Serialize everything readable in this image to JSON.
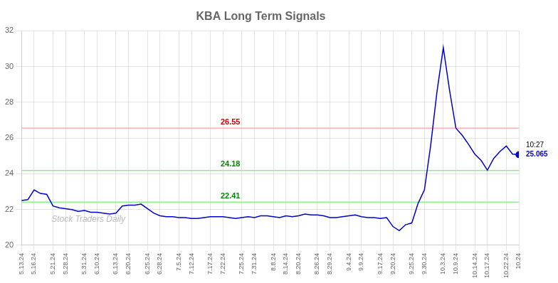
{
  "chart_data": {
    "type": "line",
    "title": "KBA Long Term Signals",
    "categories": [
      "5.13.24",
      null,
      "5.16.24",
      null,
      null,
      "5.21.24",
      null,
      "5.28.24",
      null,
      null,
      "5.31.24",
      null,
      "6.10.24",
      null,
      null,
      "6.13.24",
      null,
      "6.20.24",
      null,
      null,
      "6.25.24",
      null,
      "6.28.24",
      null,
      null,
      "7.5.24",
      null,
      "7.12.24",
      null,
      null,
      "7.17.24",
      null,
      "7.22.24",
      null,
      null,
      "7.25.24",
      null,
      "7.31.24",
      null,
      null,
      "8.8.24",
      null,
      "8.14.24",
      null,
      "8.20.24",
      null,
      null,
      "8.26.24",
      null,
      "8.29.24",
      null,
      null,
      "9.4.24",
      null,
      "9.9.24",
      null,
      null,
      "9.17.24",
      null,
      "9.20.24",
      null,
      null,
      "9.25.24",
      null,
      "9.30.24",
      null,
      null,
      "10.3.24",
      null,
      "10.9.24",
      null,
      null,
      "10.14.24",
      null,
      "10.17.24",
      null,
      null,
      "10.22.24",
      null,
      "10.24"
    ],
    "values": [
      22.5,
      22.55,
      23.1,
      22.9,
      22.85,
      22.2,
      22.1,
      22.05,
      22.0,
      21.9,
      21.95,
      21.85,
      21.85,
      21.8,
      21.75,
      21.8,
      22.2,
      22.25,
      22.25,
      22.3,
      22.05,
      21.8,
      21.65,
      21.6,
      21.6,
      21.55,
      21.55,
      21.5,
      21.5,
      21.55,
      21.6,
      21.6,
      21.6,
      21.55,
      21.5,
      21.55,
      21.6,
      21.55,
      21.65,
      21.65,
      21.6,
      21.55,
      21.65,
      21.6,
      21.65,
      21.75,
      21.7,
      21.7,
      21.65,
      21.55,
      21.55,
      21.6,
      21.65,
      21.7,
      21.6,
      21.55,
      21.55,
      21.5,
      21.55,
      21.05,
      20.82,
      21.15,
      21.25,
      22.35,
      23.1,
      25.6,
      28.6,
      31.05,
      28.65,
      26.55,
      26.15,
      25.65,
      25.1,
      24.75,
      24.2,
      24.85,
      25.25,
      25.55,
      25.1,
      25.065
    ],
    "color": "#0000cc",
    "ylim": [
      20,
      32
    ],
    "yticks": [
      20,
      22,
      24,
      26,
      28,
      30,
      32
    ],
    "grid": true,
    "reference_lines": [
      {
        "value": 26.55,
        "color": "#ffb0b0",
        "label": "26.55",
        "label_color": "#cc0000"
      },
      {
        "value": 24.18,
        "color": "#90ee90",
        "label": "24.18",
        "label_color": "#008800"
      },
      {
        "value": 22.41,
        "color": "#90ee90",
        "label": "22.41",
        "label_color": "#008800"
      }
    ],
    "annotations": [
      {
        "text": "10:27",
        "color": "#000000"
      },
      {
        "text": "25.065",
        "color": "#0000cc"
      }
    ],
    "watermark": {
      "text": "Stock Traders Daily",
      "color": "#bbbbbb"
    }
  }
}
